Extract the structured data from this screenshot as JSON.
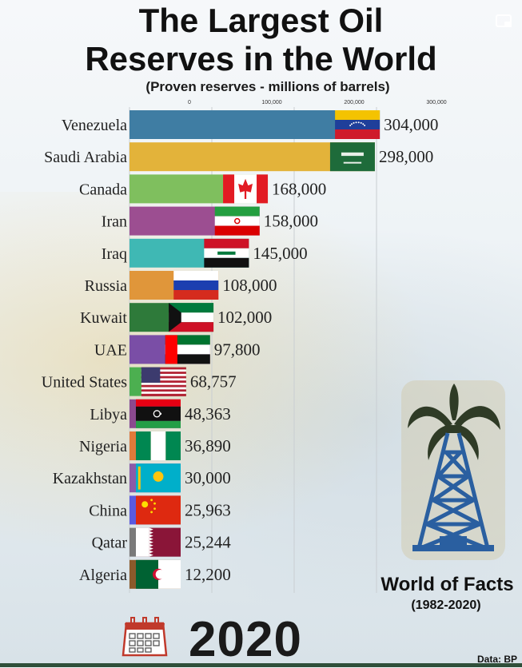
{
  "title": "The Largest Oil\nReserves in the World",
  "subtitle": "(Proven reserves - millions of barrels)",
  "year": "2020",
  "watermark": "World of Facts",
  "watermark_sub": "(1982-2020)",
  "source": "Data: BP",
  "icons": {
    "window": "picture-in-picture-icon",
    "calendar": "calendar-icon",
    "derrick": "oil-derrick-icon"
  },
  "chart_data": {
    "type": "bar",
    "orientation": "horizontal",
    "title": "The Largest Oil Reserves in the World",
    "subtitle": "(Proven reserves - millions of barrels)",
    "xlim": [
      0,
      300000
    ],
    "xticks": [
      0,
      100000,
      200000,
      300000
    ],
    "xtick_labels": [
      "0",
      "100,000",
      "200,000",
      "300,000"
    ],
    "grid": true,
    "categories": [
      "Venezuela",
      "Saudi Arabia",
      "Canada",
      "Iran",
      "Iraq",
      "Russia",
      "Kuwait",
      "UAE",
      "United States",
      "Libya",
      "Nigeria",
      "Kazakhstan",
      "China",
      "Qatar",
      "Algeria"
    ],
    "values": [
      304000,
      298000,
      168000,
      158000,
      145000,
      108000,
      102000,
      97800,
      68757,
      48363,
      36890,
      30000,
      25963,
      25244,
      12200
    ],
    "value_labels": [
      "304,000",
      "298,000",
      "168,000",
      "158,000",
      "145,000",
      "108,000",
      "102,000",
      "97,800",
      "68,757",
      "48,363",
      "36,890",
      "30,000",
      "25,963",
      "25,244",
      "12,200"
    ],
    "colors": [
      "#3f7da3",
      "#e3b33a",
      "#7fbf5e",
      "#9c4e91",
      "#3fb8b4",
      "#e0963a",
      "#2e7a3a",
      "#7a4ea6",
      "#4caf50",
      "#8b4a8f",
      "#e07a3a",
      "#8b5aa8",
      "#5a5ae0",
      "#7a7a7a",
      "#8b5a2b"
    ],
    "flags": [
      "venezuela",
      "saudi-arabia",
      "canada",
      "iran",
      "iraq",
      "russia",
      "kuwait",
      "uae",
      "united-states",
      "libya",
      "nigeria",
      "kazakhstan",
      "china",
      "qatar",
      "algeria"
    ]
  }
}
